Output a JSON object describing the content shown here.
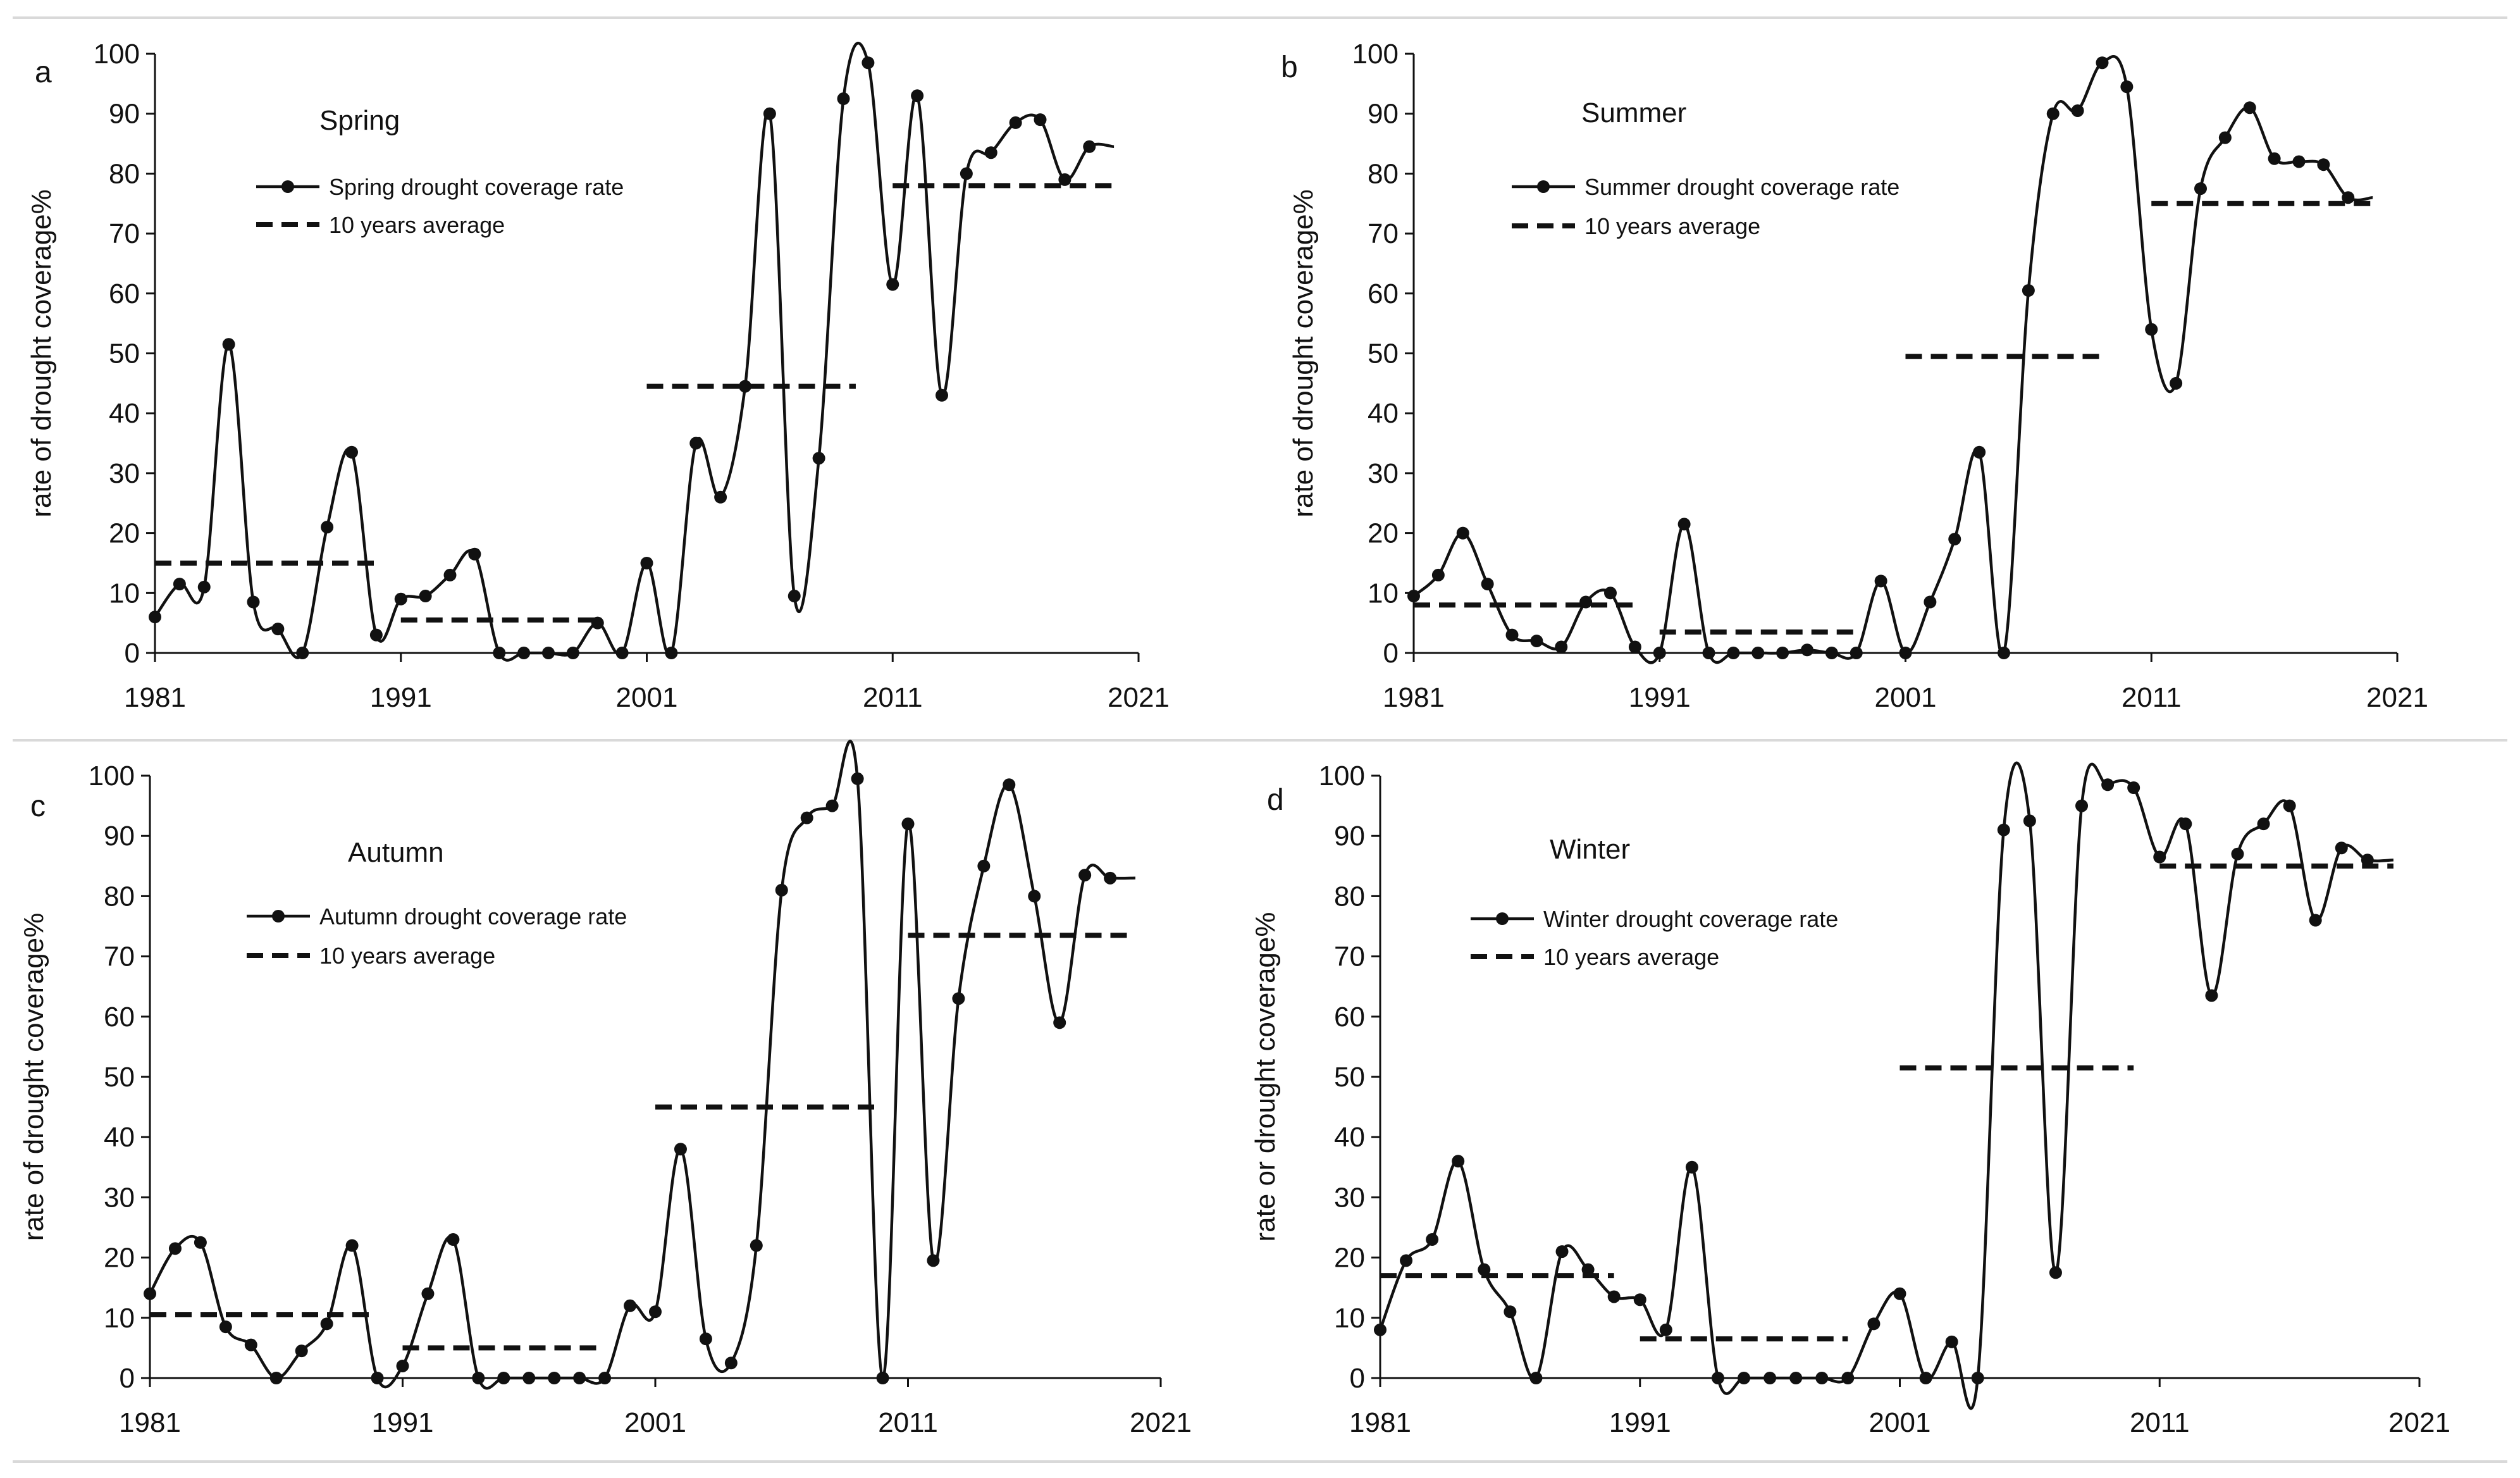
{
  "figure": {
    "colors": {
      "ink": "#111111",
      "separator": "#d9d9d9",
      "background": "#ffffff"
    }
  },
  "chart_data": [
    {
      "type": "line",
      "panel_letter": "a",
      "title": "Spring",
      "ylabel": "rate of drought coverage%",
      "xlabel": "",
      "xlim": [
        1981,
        2021
      ],
      "ylim": [
        0,
        100
      ],
      "xticks": [
        "1981",
        "1991",
        "2001",
        "2011",
        "2021"
      ],
      "yticks": [
        "0",
        "10",
        "20",
        "30",
        "40",
        "50",
        "60",
        "70",
        "80",
        "90",
        "100"
      ],
      "legend": [
        "Spring drought coverage rate",
        "10 years average"
      ],
      "series": [
        {
          "name": "Spring drought coverage rate",
          "x": [
            1981,
            1982,
            1983,
            1984,
            1985,
            1986,
            1987,
            1988,
            1989,
            1990,
            1991,
            1992,
            1993,
            1994,
            1995,
            1996,
            1997,
            1998,
            1999,
            2000,
            2001,
            2002,
            2003,
            2004,
            2005,
            2006,
            2007,
            2008,
            2009,
            2010,
            2011,
            2012,
            2013,
            2014,
            2015,
            2016,
            2017,
            2018,
            2019,
            2020
          ],
          "values": [
            6,
            11.5,
            11,
            51.5,
            8.5,
            4,
            0,
            21,
            33.5,
            3,
            9,
            9.5,
            13,
            16.5,
            0,
            0,
            0,
            0,
            5,
            0,
            15,
            0,
            35,
            26,
            44.5,
            90,
            9.5,
            32.5,
            92.5,
            98.5,
            61.5,
            93,
            43,
            80,
            83.5,
            88.5,
            89,
            79,
            84.5,
            84.5
          ]
        },
        {
          "name": "10 years average",
          "segments": [
            {
              "x": [
                1981,
                1990
              ],
              "value": 15
            },
            {
              "x": [
                1991,
                1999
              ],
              "value": 5.5
            },
            {
              "x": [
                2001,
                2009.5
              ],
              "value": 44.5
            },
            {
              "x": [
                2011,
                2020
              ],
              "value": 78
            }
          ]
        }
      ]
    },
    {
      "type": "line",
      "panel_letter": "b",
      "title": "Summer",
      "ylabel": "rate of drought coverage%",
      "xlabel": "",
      "xlim": [
        1981,
        2021
      ],
      "ylim": [
        0,
        100
      ],
      "xticks": [
        "1981",
        "1991",
        "2001",
        "2011",
        "2021"
      ],
      "yticks": [
        "0",
        "10",
        "20",
        "30",
        "40",
        "50",
        "60",
        "70",
        "80",
        "90",
        "100"
      ],
      "legend": [
        "Summer drought coverage rate",
        "10 years average"
      ],
      "series": [
        {
          "name": "Summer drought coverage rate",
          "x": [
            1981,
            1982,
            1983,
            1984,
            1985,
            1986,
            1987,
            1988,
            1989,
            1990,
            1991,
            1992,
            1993,
            1994,
            1995,
            1996,
            1997,
            1998,
            1999,
            2000,
            2001,
            2002,
            2003,
            2004,
            2005,
            2006,
            2007,
            2008,
            2009,
            2010,
            2011,
            2012,
            2013,
            2014,
            2015,
            2016,
            2017,
            2018,
            2019,
            2020
          ],
          "values": [
            9.5,
            13,
            20,
            11.5,
            3,
            2,
            1,
            8.5,
            10,
            1,
            0,
            21.5,
            0,
            0,
            0,
            0,
            0.5,
            0,
            0,
            12,
            0,
            8.5,
            19,
            33.5,
            0,
            60.5,
            90,
            90.5,
            98.5,
            94.5,
            54,
            45,
            77.5,
            86,
            91,
            82.5,
            82,
            81.5,
            76,
            76
          ]
        },
        {
          "name": "10 years average",
          "segments": [
            {
              "x": [
                1981,
                1990
              ],
              "value": 8
            },
            {
              "x": [
                1991,
                1999
              ],
              "value": 3.5
            },
            {
              "x": [
                2001,
                2009
              ],
              "value": 49.5
            },
            {
              "x": [
                2011,
                2020
              ],
              "value": 75
            }
          ]
        }
      ]
    },
    {
      "type": "line",
      "panel_letter": "c",
      "title": "Autumn",
      "ylabel": "rate of drought coverage%",
      "xlabel": "",
      "xlim": [
        1981,
        2021
      ],
      "ylim": [
        0,
        100
      ],
      "xticks": [
        "1981",
        "1991",
        "2001",
        "2011",
        "2021"
      ],
      "yticks": [
        "0",
        "10",
        "20",
        "30",
        "40",
        "50",
        "60",
        "70",
        "80",
        "90",
        "100"
      ],
      "legend": [
        "Autumn drought coverage rate",
        "10 years average"
      ],
      "series": [
        {
          "name": "Autumn drought coverage rate",
          "x": [
            1981,
            1982,
            1983,
            1984,
            1985,
            1986,
            1987,
            1988,
            1989,
            1990,
            1991,
            1992,
            1993,
            1994,
            1995,
            1996,
            1997,
            1998,
            1999,
            2000,
            2001,
            2002,
            2003,
            2004,
            2005,
            2006,
            2007,
            2008,
            2009,
            2010,
            2011,
            2012,
            2013,
            2014,
            2015,
            2016,
            2017,
            2018,
            2019,
            2020
          ],
          "values": [
            14,
            21.5,
            22.5,
            8.5,
            5.5,
            0,
            4.5,
            9,
            22,
            0,
            2,
            14,
            23,
            0,
            0,
            0,
            0,
            0,
            0,
            12,
            11,
            38,
            6.5,
            2.5,
            22,
            81,
            93,
            95,
            99.5,
            0,
            92,
            19.5,
            63,
            85,
            98.5,
            80,
            59,
            83.5,
            83,
            83
          ]
        },
        {
          "name": "10 years average",
          "segments": [
            {
              "x": [
                1981,
                1990
              ],
              "value": 10.5
            },
            {
              "x": [
                1991,
                1999
              ],
              "value": 5
            },
            {
              "x": [
                2001,
                2010
              ],
              "value": 45
            },
            {
              "x": [
                2011,
                2020
              ],
              "value": 73.5
            }
          ]
        }
      ]
    },
    {
      "type": "line",
      "panel_letter": "d",
      "title": "Winter",
      "ylabel": "rate or drought coverage%",
      "xlabel": "",
      "xlim": [
        1981,
        2021
      ],
      "ylim": [
        0,
        100
      ],
      "xticks": [
        "1981",
        "1991",
        "2001",
        "2011",
        "2021"
      ],
      "yticks": [
        "0",
        "10",
        "20",
        "30",
        "40",
        "50",
        "60",
        "70",
        "80",
        "90",
        "100"
      ],
      "legend": [
        "Winter drought coverage rate",
        "10 years average"
      ],
      "series": [
        {
          "name": "Winter drought coverage rate",
          "x": [
            1981,
            1982,
            1983,
            1984,
            1985,
            1986,
            1987,
            1988,
            1989,
            1990,
            1991,
            1992,
            1993,
            1994,
            1995,
            1996,
            1997,
            1998,
            1999,
            2000,
            2001,
            2002,
            2003,
            2004,
            2005,
            2006,
            2007,
            2008,
            2009,
            2010,
            2011,
            2012,
            2013,
            2014,
            2015,
            2016,
            2017,
            2018,
            2019,
            2020
          ],
          "values": [
            8,
            19.5,
            23,
            36,
            18,
            11,
            0,
            21,
            18,
            13.5,
            13,
            8,
            35,
            0,
            0,
            0,
            0,
            0,
            0,
            9,
            14,
            0,
            6,
            0,
            91,
            92.5,
            17.5,
            95,
            98.5,
            98,
            86.5,
            92,
            63.5,
            87,
            92,
            95,
            76,
            88,
            86,
            86
          ]
        },
        {
          "name": "10 years average",
          "segments": [
            {
              "x": [
                1981,
                1990
              ],
              "value": 17
            },
            {
              "x": [
                1991,
                1999
              ],
              "value": 6.5
            },
            {
              "x": [
                2001,
                2010
              ],
              "value": 51.5
            },
            {
              "x": [
                2011,
                2020
              ],
              "value": 85
            }
          ]
        }
      ]
    }
  ]
}
